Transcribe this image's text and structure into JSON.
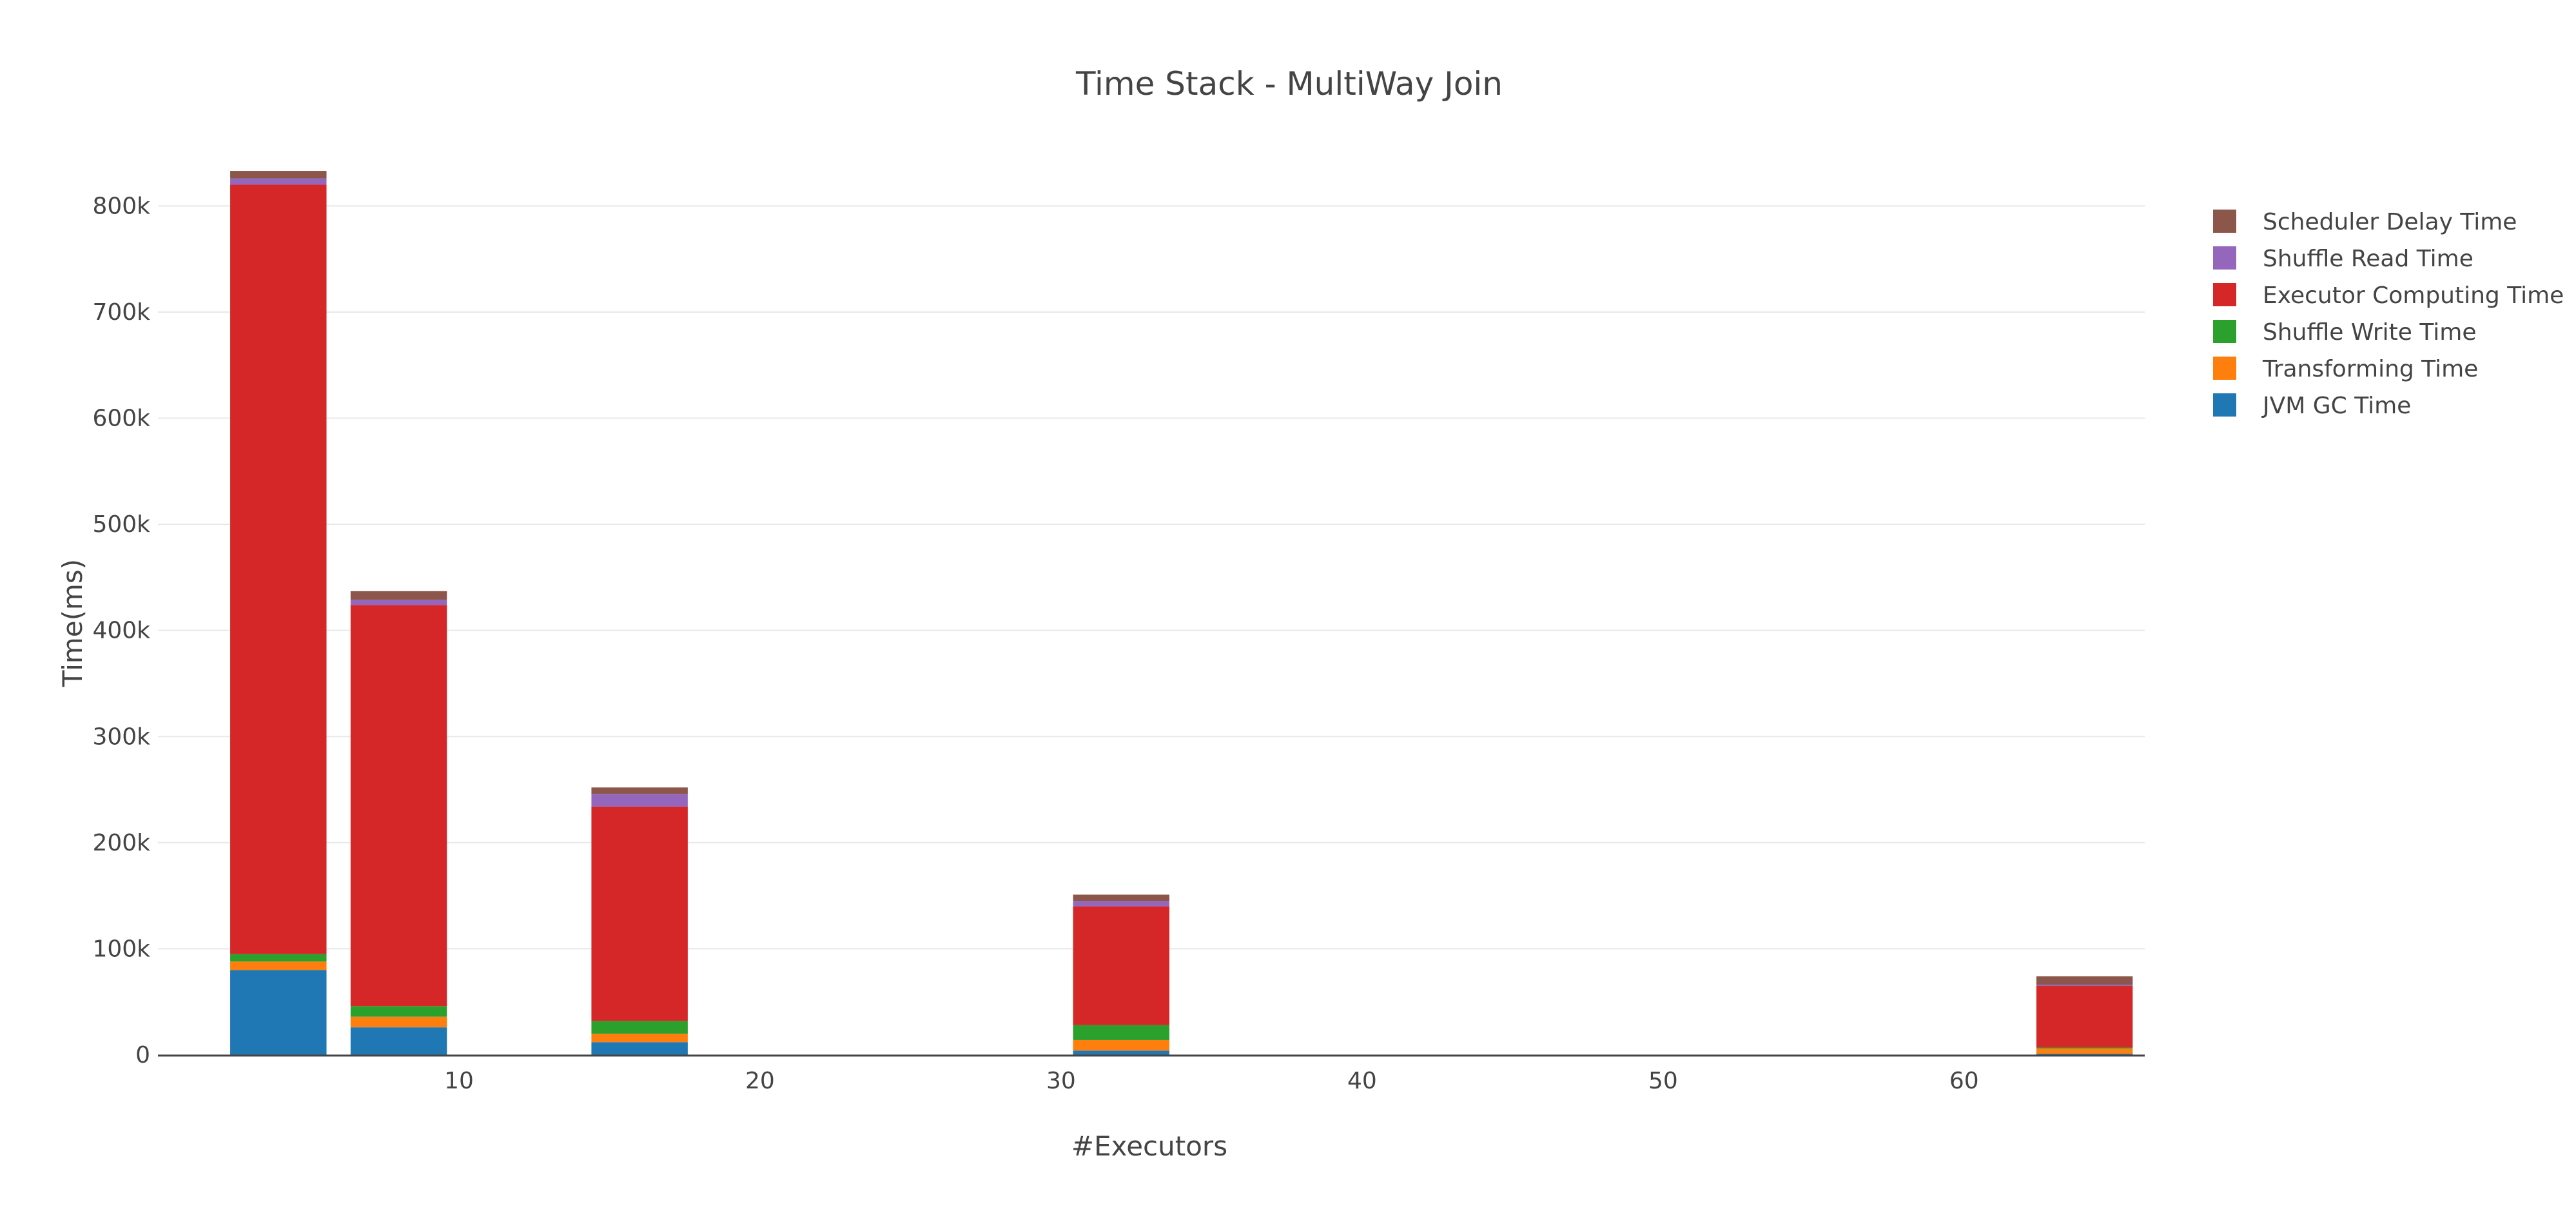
{
  "chart_data": {
    "type": "bar",
    "stacked": true,
    "title": "Time Stack - MultiWay Join",
    "xlabel": "#Executors",
    "ylabel": "Time(ms)",
    "x": [
      4,
      8,
      16,
      32,
      64
    ],
    "xlim": [
      0,
      66
    ],
    "ylim": [
      0,
      830000
    ],
    "x_ticks": [
      10,
      20,
      30,
      40,
      50,
      60
    ],
    "y_ticks": [
      0,
      100000,
      200000,
      300000,
      400000,
      500000,
      600000,
      700000,
      800000
    ],
    "y_tick_labels": [
      "0",
      "100k",
      "200k",
      "300k",
      "400k",
      "500k",
      "600k",
      "700k",
      "800k"
    ],
    "grid": true,
    "legend_position": "top-right",
    "series": [
      {
        "name": "JVM GC Time",
        "color": "#1f77b4",
        "values": [
          80000,
          26000,
          12000,
          4000,
          1000
        ]
      },
      {
        "name": "Transforming Time",
        "color": "#ff7f0e",
        "values": [
          8000,
          10000,
          8000,
          10000,
          5000
        ]
      },
      {
        "name": "Shuffle Write Time",
        "color": "#2ca02c",
        "values": [
          7000,
          10000,
          12000,
          14000,
          1000
        ]
      },
      {
        "name": "Executor Computing Time",
        "color": "#d62728",
        "values": [
          725000,
          378000,
          202000,
          112000,
          58000
        ]
      },
      {
        "name": "Shuffle Read Time",
        "color": "#9467bd",
        "values": [
          6000,
          5000,
          12000,
          5000,
          1000
        ]
      },
      {
        "name": "Scheduler Delay Time",
        "color": "#8c564b",
        "values": [
          7000,
          8000,
          6000,
          6000,
          8000
        ]
      }
    ]
  }
}
